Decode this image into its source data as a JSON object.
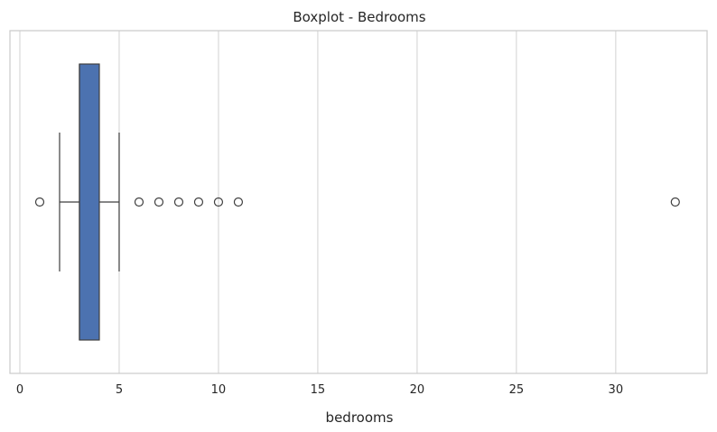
{
  "chart_data": {
    "type": "boxplot",
    "title": "Boxplot - Bedrooms",
    "xlabel": "bedrooms",
    "ylabel": "",
    "xlim": [
      -0.5,
      34.6
    ],
    "xticks": [
      0,
      5,
      10,
      15,
      20,
      25,
      30
    ],
    "grid": true,
    "series": [
      {
        "min": 2,
        "q1": 3,
        "median": 3,
        "q3": 4,
        "max": 5,
        "outliers": [
          1,
          6,
          7,
          8,
          9,
          10,
          11,
          33
        ]
      }
    ],
    "colors": {
      "box_fill": "#4c72b0",
      "line": "#3f3f3f",
      "grid": "#d9d9d9",
      "frame": "#cccccc",
      "text": "#262626"
    }
  }
}
